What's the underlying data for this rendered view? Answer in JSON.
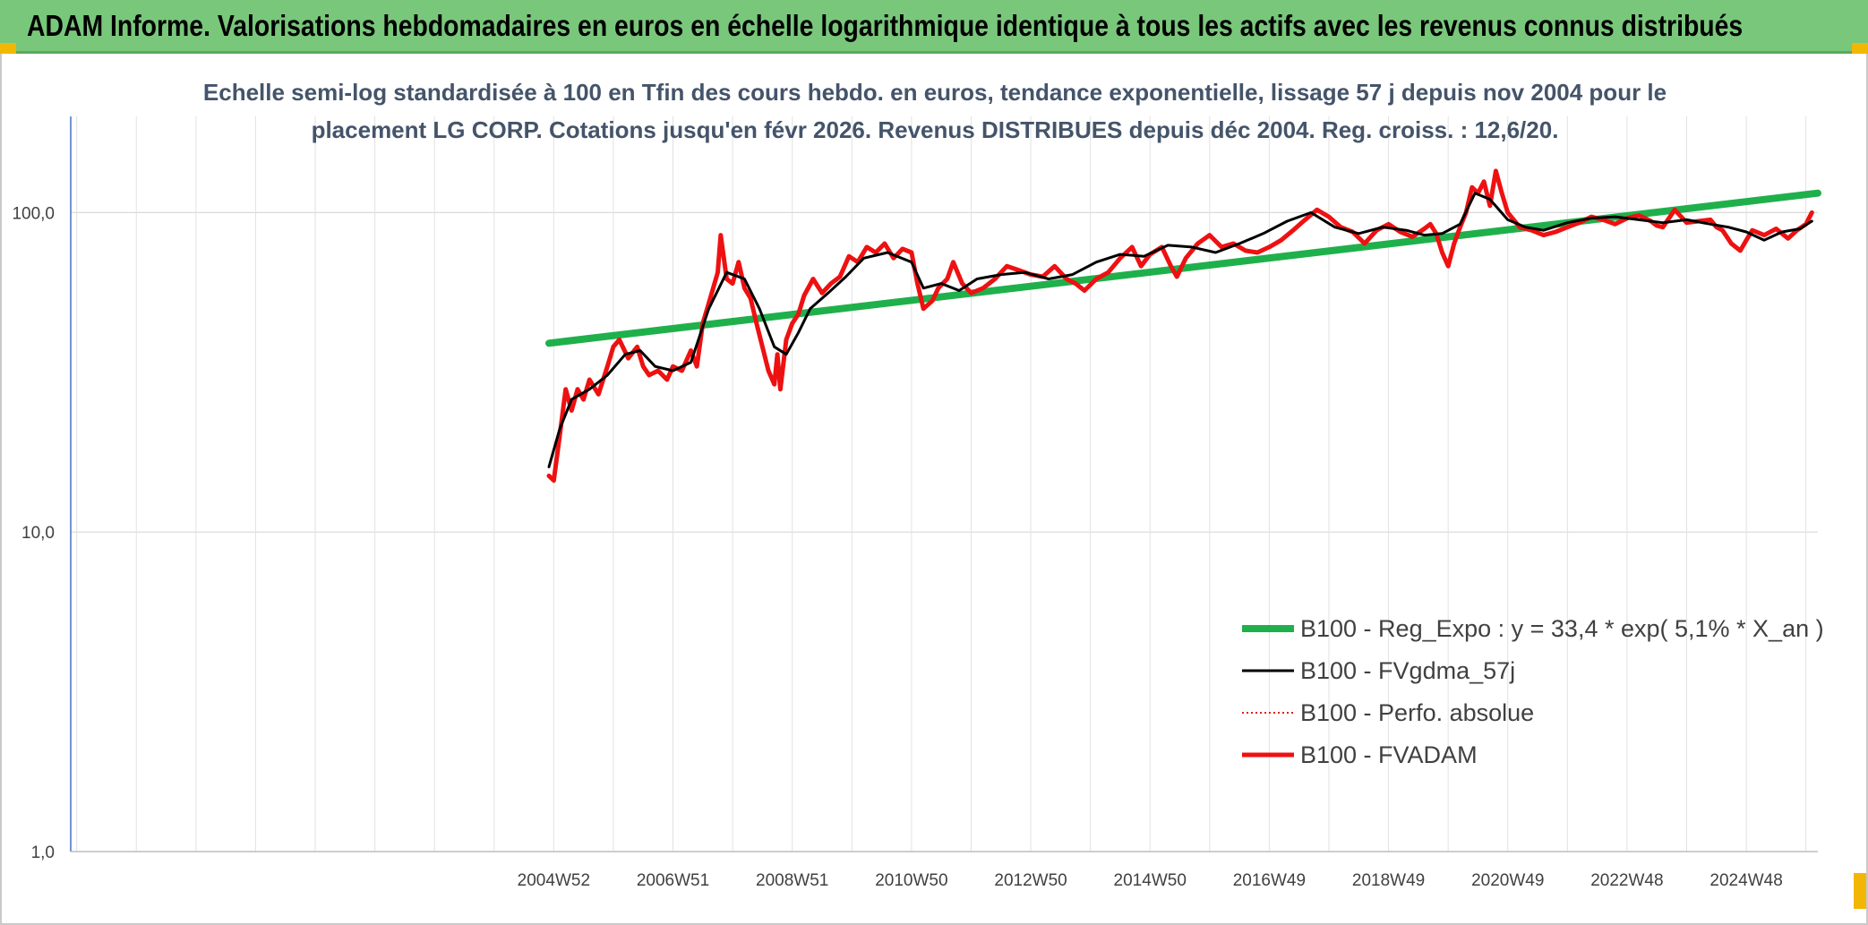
{
  "banner": {
    "title": "ADAM Informe. Valorisations hebdomadaires en euros en échelle logarithmique identique à tous les actifs avec les revenus connus distribués"
  },
  "colors": {
    "banner_bg": "#79c77b",
    "trend": "#1fb04c",
    "smoothed": "#000000",
    "perfo": "#e0201a",
    "fvadam": "#ee1111",
    "corner_marks": "#f2b705"
  },
  "chart_data": {
    "type": "line",
    "title": "",
    "subtitle_lines": [
      "Echelle semi-log standardisée à 100 en Tfin des cours hebdo. en euros, tendance exponentielle, lissage 57 j depuis nov 2004 pour le",
      "placement LG CORP. Cotations jusqu'en févr 2026. Revenus DISTRIBUES depuis déc 2004. Reg. croiss. : 12,6/20."
    ],
    "xlabel": "",
    "ylabel": "",
    "y_scale": "log",
    "ylim": [
      1,
      200
    ],
    "y_ticks": [
      "1,0",
      "10,0",
      "100,0"
    ],
    "y_tick_values": [
      1,
      10,
      100
    ],
    "xlim": [
      1996.9,
      2026.2
    ],
    "x_ticks": [
      "2004W52",
      "2006W51",
      "2008W51",
      "2010W50",
      "2012W50",
      "2014W50",
      "2016W49",
      "2018W49",
      "2020W49",
      "2022W48",
      "2024W48"
    ],
    "x_tick_values": [
      2005,
      2007,
      2009,
      2011,
      2013,
      2015,
      2017,
      2019,
      2021,
      2023,
      2025
    ],
    "grid": true,
    "legend_position": "bottom-right",
    "series": [
      {
        "name": "B100 - Reg_Expo : y = 33,4 * exp( 5,1% *  X_an )",
        "style": "thick",
        "x": [
          2004.92,
          2026.2
        ],
        "y": [
          39,
          115
        ]
      },
      {
        "name": "B100 - FVgdma_57j",
        "style": "thin",
        "x": [
          2004.92,
          2005.1,
          2005.3,
          2005.6,
          2005.9,
          2006.2,
          2006.45,
          2006.7,
          2007.0,
          2007.3,
          2007.6,
          2007.9,
          2008.2,
          2008.45,
          2008.7,
          2008.9,
          2009.1,
          2009.3,
          2009.6,
          2009.9,
          2010.2,
          2010.6,
          2011.0,
          2011.2,
          2011.5,
          2011.8,
          2012.1,
          2012.5,
          2012.9,
          2013.3,
          2013.7,
          2014.1,
          2014.5,
          2014.9,
          2015.3,
          2015.7,
          2016.1,
          2016.5,
          2016.9,
          2017.3,
          2017.7,
          2018.1,
          2018.5,
          2018.9,
          2019.3,
          2019.6,
          2019.9,
          2020.2,
          2020.45,
          2020.7,
          2021.0,
          2021.3,
          2021.6,
          2022.0,
          2022.4,
          2022.8,
          2023.2,
          2023.6,
          2024.0,
          2024.4,
          2024.7,
          2025.0,
          2025.3,
          2025.6,
          2025.9,
          2026.1
        ],
        "y": [
          16,
          21,
          26,
          28,
          31,
          36,
          37,
          33,
          32,
          34,
          50,
          65,
          62,
          50,
          38,
          36,
          42,
          50,
          56,
          63,
          72,
          75,
          70,
          58,
          60,
          57,
          62,
          64,
          65,
          62,
          64,
          70,
          74,
          73,
          79,
          78,
          75,
          80,
          86,
          94,
          100,
          90,
          86,
          90,
          88,
          85,
          86,
          92,
          115,
          110,
          95,
          90,
          88,
          93,
          96,
          97,
          95,
          93,
          95,
          92,
          90,
          87,
          82,
          87,
          89,
          94
        ]
      },
      {
        "name": "B100 - Perfo. absolue",
        "style": "dotted",
        "x": [],
        "y": []
      },
      {
        "name": "B100 - FVADAM",
        "style": "thick",
        "x": [
          2004.92,
          2005.0,
          2005.1,
          2005.2,
          2005.3,
          2005.4,
          2005.5,
          2005.6,
          2005.75,
          2005.9,
          2006.0,
          2006.1,
          2006.25,
          2006.4,
          2006.5,
          2006.6,
          2006.75,
          2006.9,
          2007.0,
          2007.15,
          2007.3,
          2007.4,
          2007.5,
          2007.6,
          2007.75,
          2007.8,
          2007.9,
          2008.0,
          2008.1,
          2008.2,
          2008.3,
          2008.4,
          2008.5,
          2008.6,
          2008.7,
          2008.75,
          2008.8,
          2008.9,
          2009.0,
          2009.1,
          2009.2,
          2009.35,
          2009.5,
          2009.65,
          2009.8,
          2009.95,
          2010.1,
          2010.25,
          2010.4,
          2010.55,
          2010.7,
          2010.85,
          2011.0,
          2011.1,
          2011.2,
          2011.35,
          2011.45,
          2011.6,
          2011.7,
          2011.85,
          2012.0,
          2012.2,
          2012.4,
          2012.6,
          2012.8,
          2013.0,
          2013.2,
          2013.4,
          2013.6,
          2013.75,
          2013.9,
          2014.1,
          2014.3,
          2014.5,
          2014.7,
          2014.85,
          2015.0,
          2015.2,
          2015.35,
          2015.45,
          2015.6,
          2015.8,
          2016.0,
          2016.2,
          2016.4,
          2016.6,
          2016.8,
          2017.0,
          2017.2,
          2017.4,
          2017.6,
          2017.8,
          2018.0,
          2018.2,
          2018.4,
          2018.6,
          2018.8,
          2019.0,
          2019.2,
          2019.4,
          2019.6,
          2019.7,
          2019.8,
          2019.9,
          2020.0,
          2020.1,
          2020.2,
          2020.3,
          2020.4,
          2020.5,
          2020.6,
          2020.7,
          2020.8,
          2020.9,
          2021.0,
          2021.2,
          2021.4,
          2021.6,
          2021.8,
          2022.0,
          2022.2,
          2022.4,
          2022.6,
          2022.8,
          2023.0,
          2023.2,
          2023.4,
          2023.5,
          2023.6,
          2023.8,
          2024.0,
          2024.2,
          2024.4,
          2024.5,
          2024.6,
          2024.75,
          2024.9,
          2025.0,
          2025.1,
          2025.3,
          2025.5,
          2025.7,
          2025.85,
          2026.0,
          2026.1
        ],
        "y": [
          15,
          14.5,
          20,
          28,
          24,
          28,
          26,
          30,
          27,
          33,
          38,
          40,
          35,
          38,
          33,
          31,
          32,
          30,
          33,
          32,
          37,
          33,
          45,
          52,
          65,
          85,
          62,
          60,
          70,
          58,
          54,
          45,
          38,
          32,
          29,
          36,
          28,
          40,
          45,
          48,
          55,
          62,
          56,
          60,
          63,
          73,
          70,
          78,
          75,
          80,
          72,
          77,
          75,
          60,
          50,
          53,
          58,
          62,
          70,
          60,
          56,
          58,
          62,
          68,
          66,
          64,
          63,
          68,
          62,
          60,
          57,
          62,
          65,
          72,
          78,
          68,
          74,
          78,
          68,
          63,
          72,
          80,
          85,
          78,
          80,
          76,
          75,
          78,
          82,
          88,
          95,
          102,
          97,
          90,
          87,
          80,
          88,
          92,
          87,
          84,
          89,
          92,
          86,
          75,
          68,
          80,
          90,
          100,
          120,
          115,
          125,
          105,
          135,
          115,
          100,
          90,
          88,
          85,
          87,
          90,
          93,
          97,
          95,
          92,
          96,
          98,
          94,
          91,
          90,
          102,
          93,
          94,
          95,
          90,
          88,
          80,
          76,
          82,
          88,
          85,
          89,
          83,
          88,
          92,
          100
        ]
      }
    ]
  }
}
